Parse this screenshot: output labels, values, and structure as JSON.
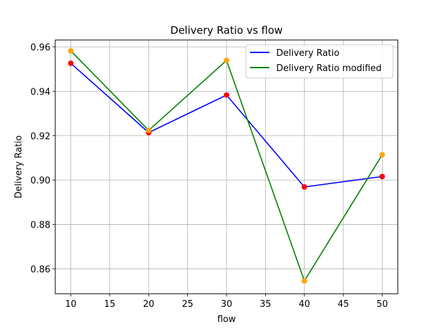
{
  "chart_data": {
    "type": "line",
    "title": "Delivery Ratio vs flow",
    "xlabel": "flow",
    "ylabel": "Delivery Ratio",
    "x": [
      10,
      20,
      30,
      40,
      50
    ],
    "xlim": [
      8,
      52
    ],
    "ylim": [
      0.8488,
      0.9631
    ],
    "xticks": [
      10,
      15,
      20,
      25,
      30,
      35,
      40,
      45,
      50
    ],
    "yticks": [
      0.86,
      0.88,
      0.9,
      0.92,
      0.94,
      0.96
    ],
    "ytick_labels": [
      "0.86",
      "0.88",
      "0.90",
      "0.92",
      "0.94",
      "0.96"
    ],
    "grid": true,
    "legend_position": "top-right",
    "series": [
      {
        "name": "Delivery Ratio",
        "values": [
          0.9526,
          0.9214,
          0.9383,
          0.8969,
          0.9016
        ],
        "color": "#0000ff",
        "marker_color": "#ff0000"
      },
      {
        "name": "Delivery Ratio modified",
        "values": [
          0.9582,
          0.9224,
          0.9539,
          0.8546,
          0.9114
        ],
        "color": "#008000",
        "marker_color": "#ffa500"
      }
    ]
  }
}
